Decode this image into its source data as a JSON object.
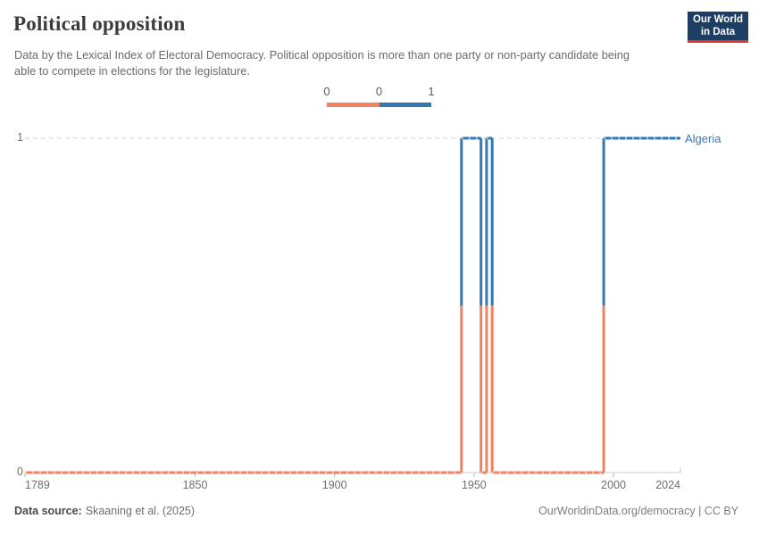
{
  "header": {
    "title": "Political opposition",
    "subtitle": "Data by the Lexical Index of Electoral Democracy. Political opposition is more than one party or non-party candidate being able to compete in elections for the legislature.",
    "logo": {
      "line1": "Our World",
      "line2": "in Data",
      "bg": "#1D3D63",
      "accent": "#E0352C"
    }
  },
  "legend": {
    "edge_labels": [
      "0",
      "0",
      "1"
    ],
    "items": [
      {
        "value": 0,
        "color": "#F0825F"
      },
      {
        "value": 1,
        "color": "#3179B4"
      }
    ]
  },
  "chart_data": {
    "type": "line",
    "style": "step",
    "title": "Political opposition",
    "entity": "Algeria",
    "entity_color": "#3779BC",
    "color_value_0": "#F0825F",
    "color_value_1": "#3179B4",
    "grid": "dashed-horizontal",
    "legend_position": "top-center",
    "x_range": [
      1789,
      2024
    ],
    "y_range": [
      0,
      1
    ],
    "x_ticks": [
      {
        "label": "1789",
        "year": 1789
      },
      {
        "label": "1850",
        "year": 1850
      },
      {
        "label": "1900",
        "year": 1900
      },
      {
        "label": "1950",
        "year": 1950
      },
      {
        "label": "2000",
        "year": 2000
      },
      {
        "label": "2024",
        "year": 2024
      }
    ],
    "y_ticks": [
      {
        "label": "0",
        "value": 0
      },
      {
        "label": "1",
        "value": 1
      }
    ],
    "series": [
      {
        "name": "Algeria",
        "segments": [
          {
            "from": 1789,
            "to": 1945,
            "value": 0
          },
          {
            "from": 1946,
            "to": 1952,
            "value": 1
          },
          {
            "from": 1953,
            "to": 1954,
            "value": 0
          },
          {
            "from": 1955,
            "to": 1956,
            "value": 1
          },
          {
            "from": 1957,
            "to": 1996,
            "value": 0
          },
          {
            "from": 1997,
            "to": 2024,
            "value": 1
          }
        ]
      }
    ]
  },
  "footer": {
    "source_label": "Data source:",
    "source_value": "Skaaning et al. (2025)",
    "right_text": "OurWorldinData.org/democracy | CC BY"
  }
}
